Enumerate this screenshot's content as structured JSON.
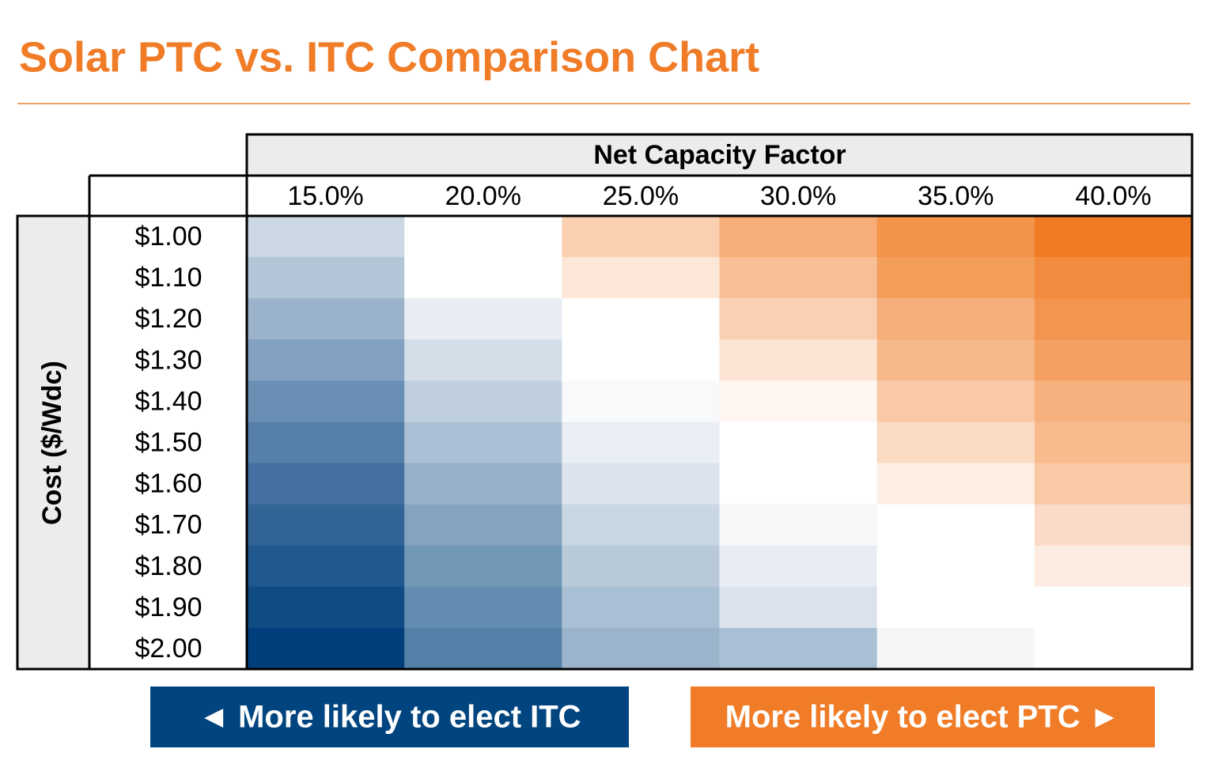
{
  "title": "Solar PTC vs. ITC Comparison Chart",
  "column_group_label": "Net Capacity Factor",
  "row_group_label": "Cost ($/Wdc)",
  "columns": [
    "15.0%",
    "20.0%",
    "25.0%",
    "30.0%",
    "35.0%",
    "40.0%"
  ],
  "rows": [
    {
      "label": "$1.00",
      "colors": [
        "#cbd7e3",
        "#ffffff",
        "#fad0b1",
        "#f6ad78",
        "#f39449",
        "#f07b24"
      ]
    },
    {
      "label": "$1.10",
      "colors": [
        "#b3c6d8",
        "#ffffff",
        "#fce7d8",
        "#f8bf96",
        "#f49e5c",
        "#f28b3e"
      ]
    },
    {
      "label": "$1.20",
      "colors": [
        "#9ab3cb",
        "#e8ecf3",
        "#ffffff",
        "#fad0b2",
        "#f6af7a",
        "#f3954e"
      ]
    },
    {
      "label": "$1.30",
      "colors": [
        "#82a0bf",
        "#d4dee8",
        "#ffffff",
        "#fce5d5",
        "#f7b989",
        "#f4a062"
      ]
    },
    {
      "label": "$1.40",
      "colors": [
        "#6a8fb4",
        "#c0cfdf",
        "#f8f9fb",
        "#fef5f1",
        "#f9c9a6",
        "#f6b17f"
      ]
    },
    {
      "label": "$1.50",
      "colors": [
        "#5580aa",
        "#abc0d4",
        "#e9eef4",
        "#ffffff",
        "#fbdac3",
        "#f7bb8d"
      ]
    },
    {
      "label": "$1.60",
      "colors": [
        "#4370a0",
        "#98b0ca",
        "#dbe3ec",
        "#ffffff",
        "#fdefe4",
        "#f9c8a4"
      ]
    },
    {
      "label": "$1.70",
      "colors": [
        "#326596",
        "#85a3c1",
        "#c9d6e3",
        "#f6f7f9",
        "#ffffff",
        "#fadbc7"
      ]
    },
    {
      "label": "$1.80",
      "colors": [
        "#21588d",
        "#7298b8",
        "#b8c9da",
        "#e9edf3",
        "#ffffff",
        "#fcece1"
      ]
    },
    {
      "label": "$1.90",
      "colors": [
        "#114b84",
        "#628cb0",
        "#a9bfd4",
        "#dbe3ec",
        "#ffffff",
        "#ffffff"
      ]
    },
    {
      "label": "$2.00",
      "colors": [
        "#003f7c",
        "#5581a8",
        "#9bb4cc",
        "#a9bfd4",
        "#f5f6f8",
        "#ffffff"
      ]
    }
  ],
  "legend": [
    {
      "label": "◄ More likely to elect ITC",
      "color": "#00457f"
    },
    {
      "label": "More likely to elect PTC ►",
      "color": "#f07c28"
    }
  ]
}
